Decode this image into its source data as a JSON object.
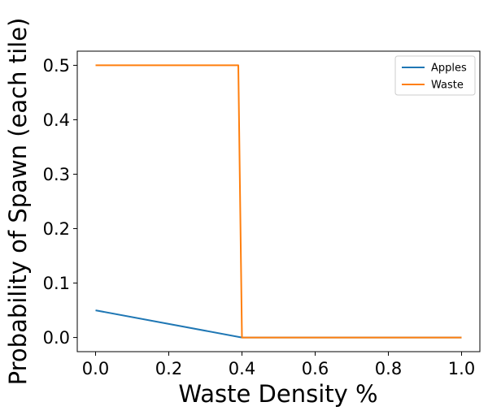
{
  "chart_data": {
    "type": "line",
    "title": "",
    "xlabel": "Waste Density %",
    "ylabel": "Probability of Spawn (each tile)",
    "xlim": [
      -0.05,
      1.05
    ],
    "ylim": [
      -0.026,
      0.526
    ],
    "xticks": [
      0.0,
      0.2,
      0.4,
      0.6,
      0.8,
      1.0
    ],
    "xtick_labels": [
      "0.0",
      "0.2",
      "0.4",
      "0.6",
      "0.8",
      "1.0"
    ],
    "yticks": [
      0.0,
      0.1,
      0.2,
      0.3,
      0.4,
      0.5
    ],
    "ytick_labels": [
      "0.0",
      "0.1",
      "0.2",
      "0.3",
      "0.4",
      "0.5"
    ],
    "grid": false,
    "legend": "top-right",
    "series": [
      {
        "name": "Apples",
        "color": "#1f77b4",
        "x": [
          0.0,
          0.4,
          0.4,
          1.0
        ],
        "y": [
          0.05,
          0.0,
          0.0,
          0.0
        ]
      },
      {
        "name": "Waste",
        "color": "#ff7f0e",
        "x": [
          0.0,
          0.39,
          0.4,
          1.0
        ],
        "y": [
          0.5,
          0.5,
          0.0,
          0.0
        ]
      }
    ]
  }
}
